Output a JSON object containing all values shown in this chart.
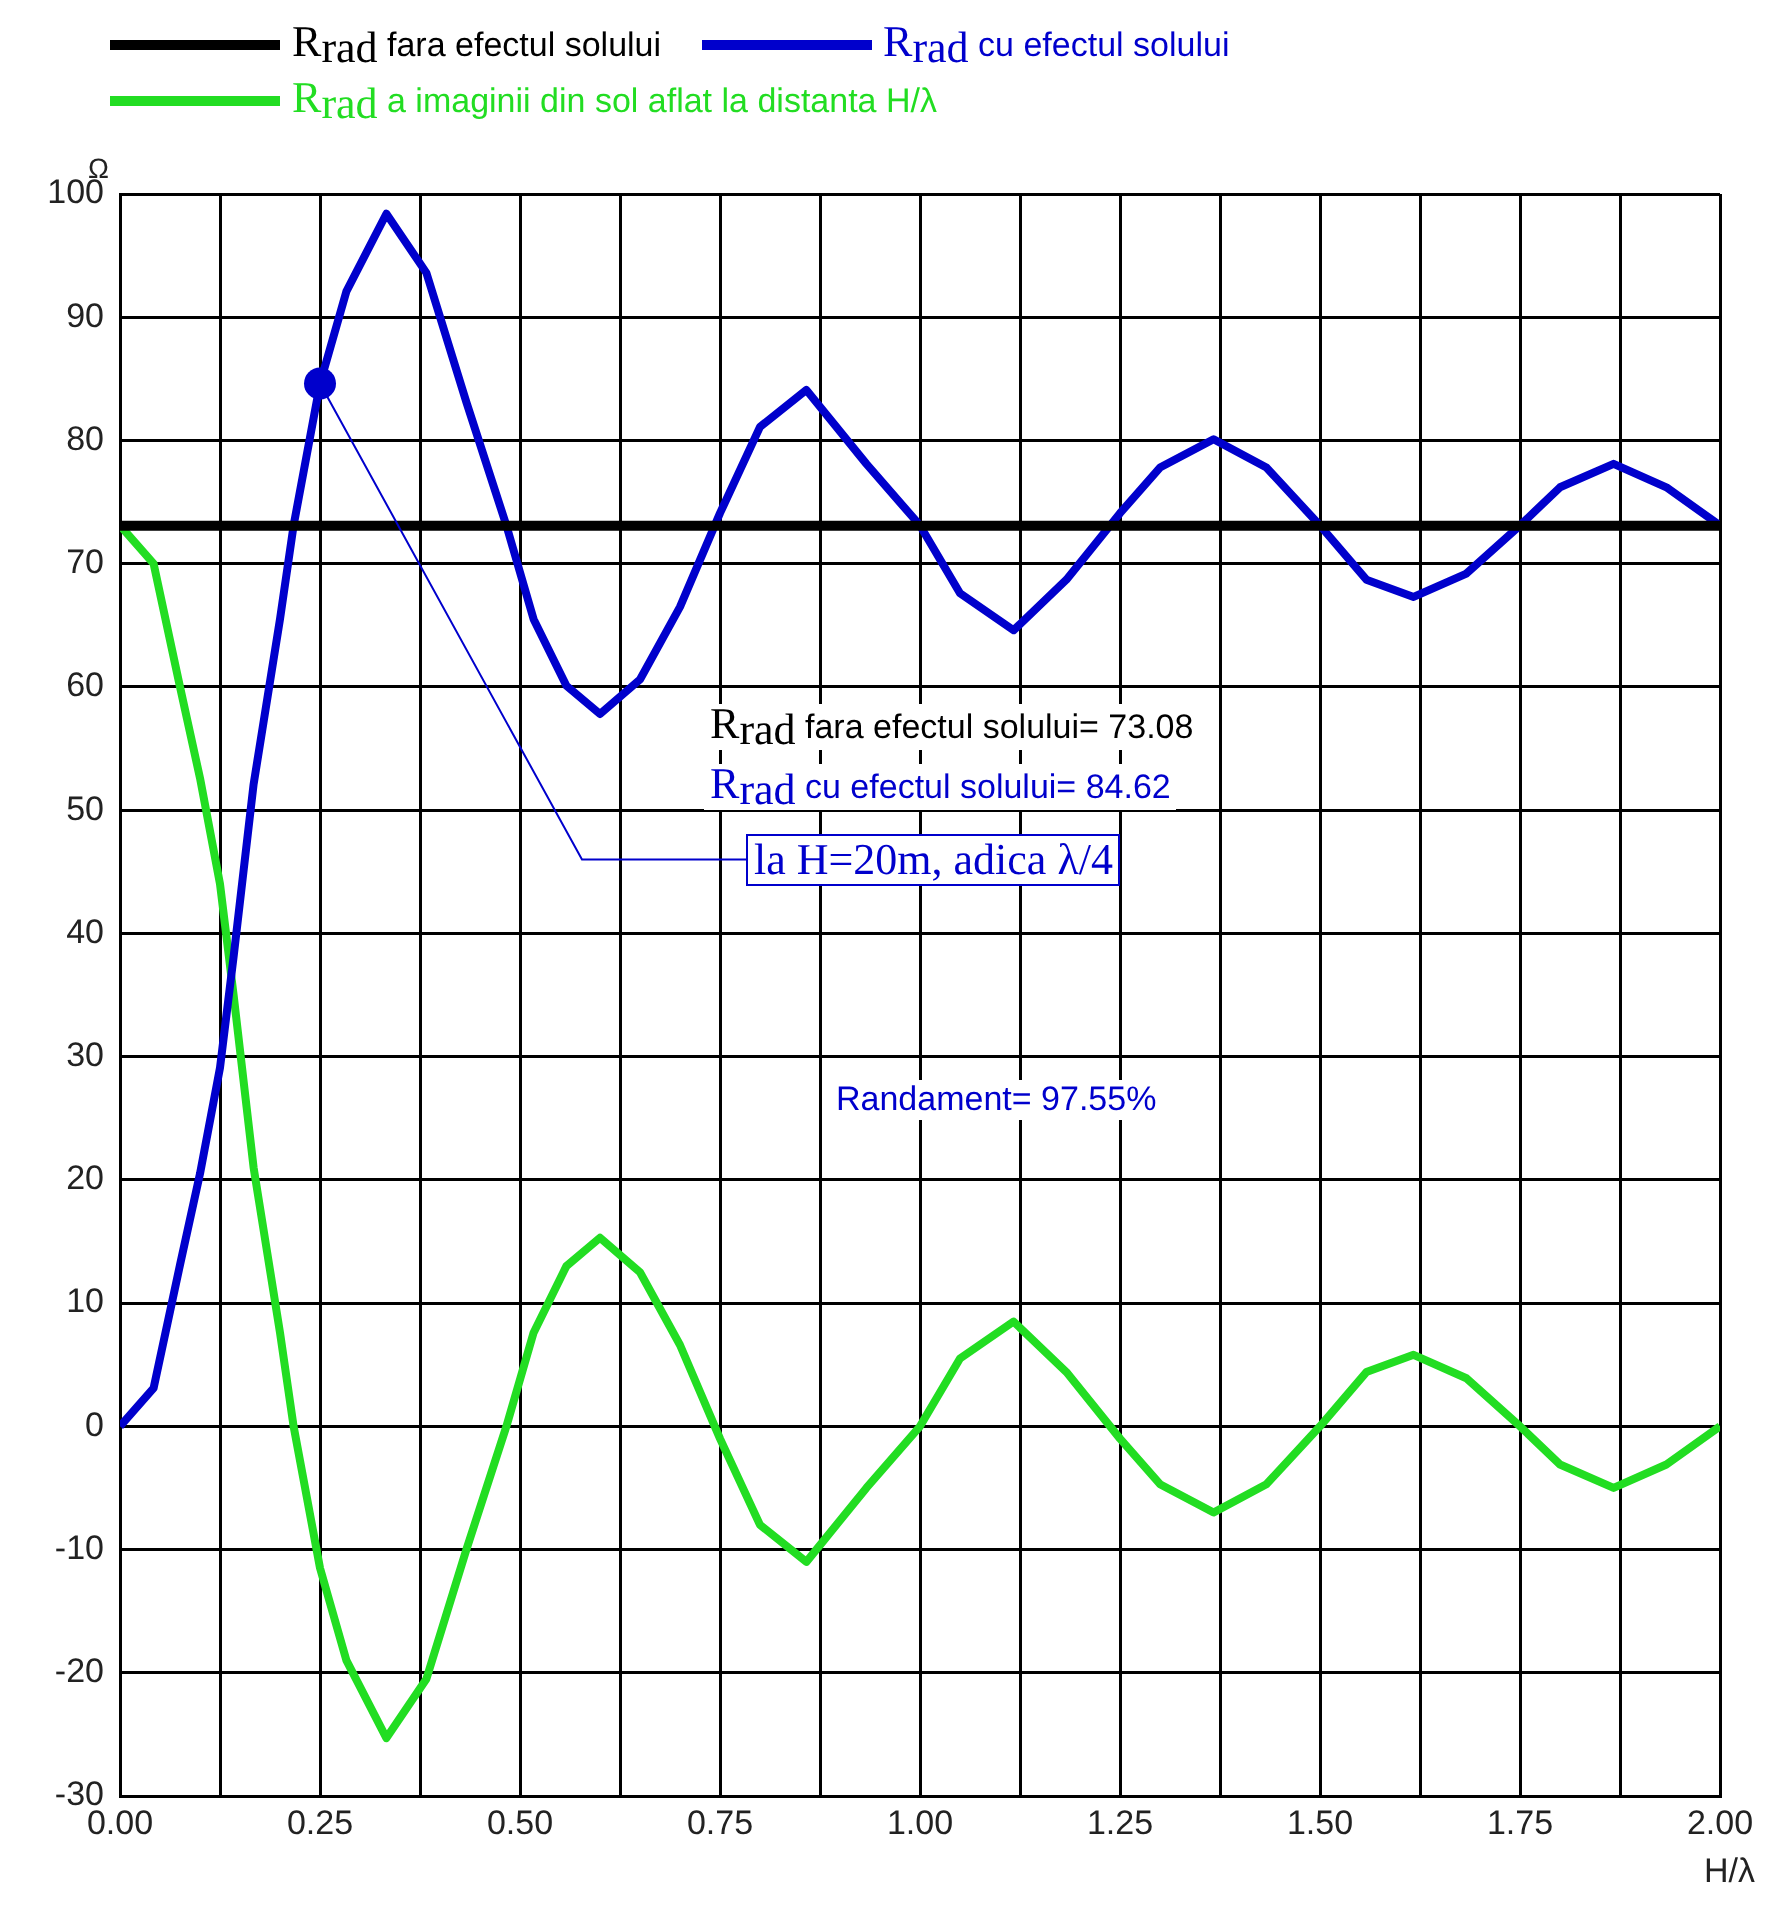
{
  "chart_data": {
    "type": "line",
    "xlabel": "H/λ",
    "ylabel": "Ω",
    "x": [
      0,
      0.042,
      0.075,
      0.1,
      0.125,
      0.142,
      0.167,
      0.2,
      0.217,
      0.25,
      0.283,
      0.333,
      0.383,
      0.433,
      0.483,
      0.517,
      0.558,
      0.6,
      0.65,
      0.7,
      0.75,
      0.8,
      0.858,
      0.933,
      1.0,
      1.05,
      1.117,
      1.183,
      1.25,
      1.3,
      1.367,
      1.433,
      1.5,
      1.558,
      1.617,
      1.683,
      1.75,
      1.8,
      1.867,
      1.933,
      2.0
    ],
    "series": [
      {
        "name": "R$_{rad}$ fara efectul solului",
        "color": "#000000",
        "x": [
          0,
          2
        ],
        "values": [
          73.08,
          73.08
        ]
      },
      {
        "name": "R$_{rad}$ cu efectul solului",
        "color": "#0000cc",
        "values": [
          0,
          3.1,
          13.1,
          20.5,
          29.1,
          38.1,
          52.1,
          65.5,
          73.1,
          84.6,
          92.1,
          98.4,
          93.6,
          83.1,
          73.1,
          65.5,
          60.1,
          57.8,
          60.6,
          66.5,
          74.1,
          81.1,
          84.1,
          78.1,
          73.1,
          67.6,
          64.6,
          68.7,
          74.1,
          77.8,
          80.1,
          77.8,
          73.1,
          68.7,
          67.3,
          69.2,
          73.1,
          76.2,
          78.1,
          76.2,
          73.1
        ]
      },
      {
        "name": "R$_{rad}$ a imaginii din sol aflat la distanta H/λ",
        "color": "#22dd22",
        "values": [
          73.1,
          70,
          60,
          52.6,
          44,
          35,
          21,
          7.6,
          0,
          -11.5,
          -19,
          -25.3,
          -20.5,
          -10,
          0,
          7.6,
          13,
          15.3,
          12.5,
          6.6,
          -1,
          -8,
          -11,
          -5,
          0,
          5.5,
          8.5,
          4.4,
          -1,
          -4.7,
          -7,
          -4.7,
          0,
          4.4,
          5.8,
          3.9,
          0,
          -3.1,
          -5,
          -3.1,
          0
        ]
      },
      {
        "type": "scatter",
        "color": "#0000cc",
        "x": [
          0.25
        ],
        "values": [
          84.62
        ],
        "marker": "circle"
      }
    ],
    "xlim": [
      0,
      2
    ],
    "xticks": [
      {
        "value": 0,
        "label": "0.00"
      },
      {
        "value": 0.125,
        "label": null
      },
      {
        "value": 0.25,
        "label": "0.25"
      },
      {
        "value": 0.375,
        "label": null
      },
      {
        "value": 0.5,
        "label": "0.50"
      },
      {
        "value": 0.625,
        "label": null
      },
      {
        "value": 0.75,
        "label": "0.75"
      },
      {
        "value": 0.875,
        "label": null
      },
      {
        "value": 1,
        "label": "1.00"
      },
      {
        "value": 1.125,
        "label": null
      },
      {
        "value": 1.25,
        "label": "1.25"
      },
      {
        "value": 1.375,
        "label": null
      },
      {
        "value": 1.5,
        "label": "1.50"
      },
      {
        "value": 1.625,
        "label": null
      },
      {
        "value": 1.75,
        "label": "1.75"
      },
      {
        "value": 1.875,
        "label": null
      },
      {
        "value": 2,
        "label": "2.00"
      }
    ],
    "ylim": [
      -30,
      100
    ],
    "yticks": [
      -30,
      -20,
      -10,
      0,
      10,
      20,
      30,
      40,
      50,
      60,
      70,
      80,
      90,
      100
    ],
    "grid": true,
    "legend": "top",
    "marker": "none",
    "line_style": "solid",
    "annotations": [
      "R$_{rad}$ fara efectul solului= 73.08",
      "R$_{rad}$ cu efectul solului= 84.62",
      {
        "text": "la H=20m, adica λ/4",
        "x": 0.25,
        "y": 84.62
      },
      "Randament= 97.55%"
    ]
  }
}
